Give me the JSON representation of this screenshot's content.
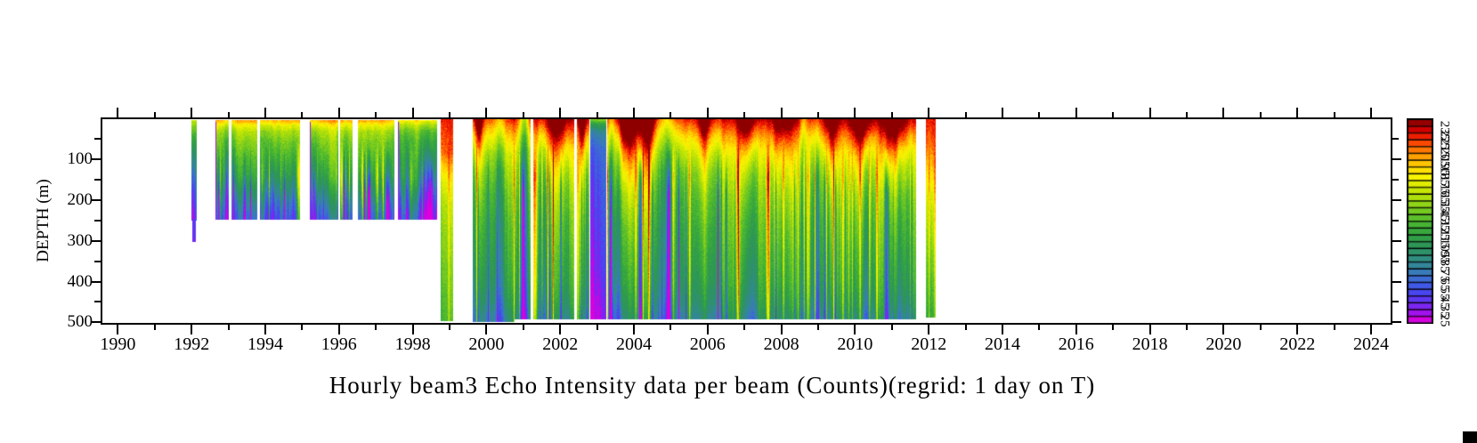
{
  "chart_data": {
    "type": "heatmap",
    "title": "Hourly beam3 Echo Intensity data per beam (Counts)(regrid: 1 day on T)",
    "value_unit": "Counts",
    "x_axis": {
      "unit": "year",
      "range": [
        1989.58,
        2024.54
      ],
      "major_ticks": [
        1990,
        1992,
        1994,
        1996,
        1998,
        2000,
        2002,
        2004,
        2006,
        2008,
        2010,
        2012,
        2014,
        2016,
        2018,
        2020,
        2022,
        2024
      ],
      "minor_ticks": [
        1991,
        1993,
        1995,
        1997,
        1999,
        2001,
        2003,
        2005,
        2007,
        2009,
        2011,
        2013,
        2015,
        2017,
        2019,
        2021,
        2023
      ]
    },
    "y_axis": {
      "label": "DEPTH (m)",
      "unit": "m",
      "range": [
        0,
        500
      ],
      "major_ticks": [
        100,
        200,
        300,
        400,
        500
      ],
      "minor_ticks": [
        50,
        150,
        250,
        350,
        450
      ]
    },
    "colorbar": {
      "tick_labels": [
        235,
        225,
        215,
        205,
        195,
        185,
        175,
        165,
        155,
        145,
        135,
        125,
        115,
        105,
        95,
        85,
        75,
        65,
        55,
        45,
        35,
        25
      ],
      "cells": 30,
      "bar_value_range": [
        22.5,
        247.5
      ],
      "color_stops": [
        [
          25,
          "#DC00DC"
        ],
        [
          35,
          "#9914F0"
        ],
        [
          45,
          "#6930F0"
        ],
        [
          55,
          "#4A42F0"
        ],
        [
          65,
          "#3E5CE4"
        ],
        [
          75,
          "#3A75C8"
        ],
        [
          85,
          "#35859E"
        ],
        [
          95,
          "#2F8E7A"
        ],
        [
          105,
          "#2E935F"
        ],
        [
          115,
          "#2F9C49"
        ],
        [
          125,
          "#39AA3B"
        ],
        [
          135,
          "#50B92F"
        ],
        [
          145,
          "#70C822"
        ],
        [
          155,
          "#95D614"
        ],
        [
          165,
          "#B9E207"
        ],
        [
          175,
          "#DCEC00"
        ],
        [
          185,
          "#FBF500"
        ],
        [
          195,
          "#FFD400"
        ],
        [
          205,
          "#FFA800"
        ],
        [
          215,
          "#FF7000"
        ],
        [
          225,
          "#F93000"
        ],
        [
          235,
          "#D90000"
        ],
        [
          245,
          "#8E0000"
        ]
      ]
    },
    "heatmap": {
      "seed": 11,
      "quantize_step": 7.5,
      "profiles": {
        "early": [
          [
            0,
            215
          ],
          [
            5,
            198
          ],
          [
            15,
            178
          ],
          [
            30,
            158
          ],
          [
            55,
            143
          ],
          [
            90,
            128
          ],
          [
            130,
            112
          ],
          [
            165,
            95
          ],
          [
            200,
            76
          ],
          [
            230,
            62
          ],
          [
            245,
            56
          ]
        ],
        "full": [
          [
            0,
            231
          ],
          [
            18,
            216
          ],
          [
            45,
            196
          ],
          [
            80,
            174
          ],
          [
            125,
            157
          ],
          [
            185,
            143
          ],
          [
            255,
            133
          ],
          [
            330,
            125
          ],
          [
            400,
            117
          ],
          [
            455,
            106
          ],
          [
            490,
            94
          ]
        ],
        "sliver": [
          [
            0,
            176
          ],
          [
            18,
            157
          ],
          [
            45,
            135
          ],
          [
            90,
            112
          ],
          [
            140,
            92
          ],
          [
            190,
            73
          ],
          [
            250,
            58
          ]
        ],
        "tail": [
          [
            245,
            58
          ],
          [
            300,
            56
          ]
        ],
        "redstripe": [
          [
            0,
            229
          ],
          [
            80,
            219
          ],
          [
            115,
            199
          ],
          [
            155,
            180
          ],
          [
            210,
            166
          ],
          [
            280,
            157
          ],
          [
            350,
            150
          ],
          [
            420,
            143
          ],
          [
            494,
            135
          ]
        ],
        "purple": [
          [
            0,
            152
          ],
          [
            12,
            118
          ],
          [
            30,
            88
          ],
          [
            70,
            68
          ],
          [
            150,
            58
          ],
          [
            280,
            48
          ],
          [
            380,
            40
          ],
          [
            440,
            32
          ],
          [
            490,
            27
          ]
        ],
        "finalstripe": [
          [
            0,
            227
          ],
          [
            55,
            213
          ],
          [
            95,
            196
          ],
          [
            150,
            175
          ],
          [
            210,
            160
          ],
          [
            290,
            146
          ],
          [
            370,
            131
          ],
          [
            440,
            120
          ],
          [
            486,
            112
          ]
        ]
      },
      "segments": [
        {
          "start": 1991.99,
          "end": 1992.14,
          "profile": "sliver",
          "top_depth": 3,
          "bottom_depth": 247,
          "noise": 0.5
        },
        {
          "start": 1992.01,
          "end": 1992.12,
          "profile": "tail",
          "top_depth": 245,
          "bottom_depth": 300,
          "noise": 0.2
        },
        {
          "start": 1992.65,
          "end": 1993.0,
          "profile": "early",
          "top_depth": 3,
          "bottom_depth": 244,
          "left_purple": true
        },
        {
          "start": 1993.08,
          "end": 1993.78,
          "profile": "early",
          "top_depth": 3,
          "bottom_depth": 244
        },
        {
          "start": 1993.85,
          "end": 1994.95,
          "profile": "early",
          "top_depth": 3,
          "bottom_depth": 244
        },
        {
          "start": 1995.21,
          "end": 1995.98,
          "profile": "early",
          "top_depth": 3,
          "bottom_depth": 244,
          "left_purple": true
        },
        {
          "start": 1996.03,
          "end": 1996.37,
          "profile": "early",
          "top_depth": 3,
          "bottom_depth": 244
        },
        {
          "start": 1996.52,
          "end": 1997.51,
          "profile": "early",
          "top_depth": 3,
          "bottom_depth": 244
        },
        {
          "start": 1997.6,
          "end": 1998.65,
          "profile": "early",
          "top_depth": 3,
          "bottom_depth": 244,
          "offset": -14,
          "left_purple": true
        },
        {
          "start": 1998.77,
          "end": 1999.1,
          "profile": "redstripe",
          "top_depth": 0,
          "bottom_depth": 494,
          "noise": 0.45
        },
        {
          "start": 1999.63,
          "end": 2001.21,
          "profile": "full",
          "top_depth": 1,
          "bottom_depth": 490,
          "foot_until": 2000.75,
          "foot_depth": 496
        },
        {
          "start": 2001.26,
          "end": 2002.39,
          "profile": "full",
          "top_depth": 1,
          "bottom_depth": 490
        },
        {
          "start": 2002.46,
          "end": 2002.79,
          "profile": "full",
          "top_depth": 1,
          "bottom_depth": 490
        },
        {
          "start": 2002.82,
          "end": 2003.25,
          "profile": "purple",
          "top_depth": 1,
          "bottom_depth": 490,
          "noise": 0.3
        },
        {
          "start": 2003.27,
          "end": 2011.66,
          "profile": "full",
          "top_depth": 1,
          "bottom_depth": 490
        },
        {
          "start": 2011.92,
          "end": 2012.2,
          "profile": "finalstripe",
          "top_depth": 1,
          "bottom_depth": 486,
          "noise": 0.5
        }
      ],
      "warm_plumes": [
        {
          "year": 1999.78,
          "width": 0.1,
          "amp": 65
        },
        {
          "year": 2001.9,
          "width": 0.28,
          "amp": 55
        },
        {
          "year": 2002.6,
          "width": 0.1,
          "amp": 60
        },
        {
          "year": 2003.85,
          "width": 0.42,
          "amp": 85
        },
        {
          "year": 2004.4,
          "width": 0.15,
          "amp": 60
        },
        {
          "year": 2005.9,
          "width": 0.16,
          "amp": 55
        },
        {
          "year": 2007.05,
          "width": 0.22,
          "amp": 62
        },
        {
          "year": 2008.05,
          "width": 0.3,
          "amp": 45
        },
        {
          "year": 2009.35,
          "width": 0.18,
          "amp": 58
        },
        {
          "year": 2010.15,
          "width": 0.28,
          "amp": 72
        },
        {
          "year": 2011.05,
          "width": 0.3,
          "amp": 72
        }
      ],
      "cool_dips": [
        {
          "year": 2000.35,
          "width": 0.3,
          "amp": 25
        },
        {
          "year": 2001.02,
          "width": 0.13,
          "amp": 70
        },
        {
          "year": 2003.45,
          "width": 0.2,
          "amp": 60
        },
        {
          "year": 2004.85,
          "width": 0.25,
          "amp": 35
        },
        {
          "year": 2008.6,
          "width": 0.1,
          "amp": 30
        }
      ]
    }
  },
  "decorations": {
    "bottom_right_square_color": "#000000"
  }
}
